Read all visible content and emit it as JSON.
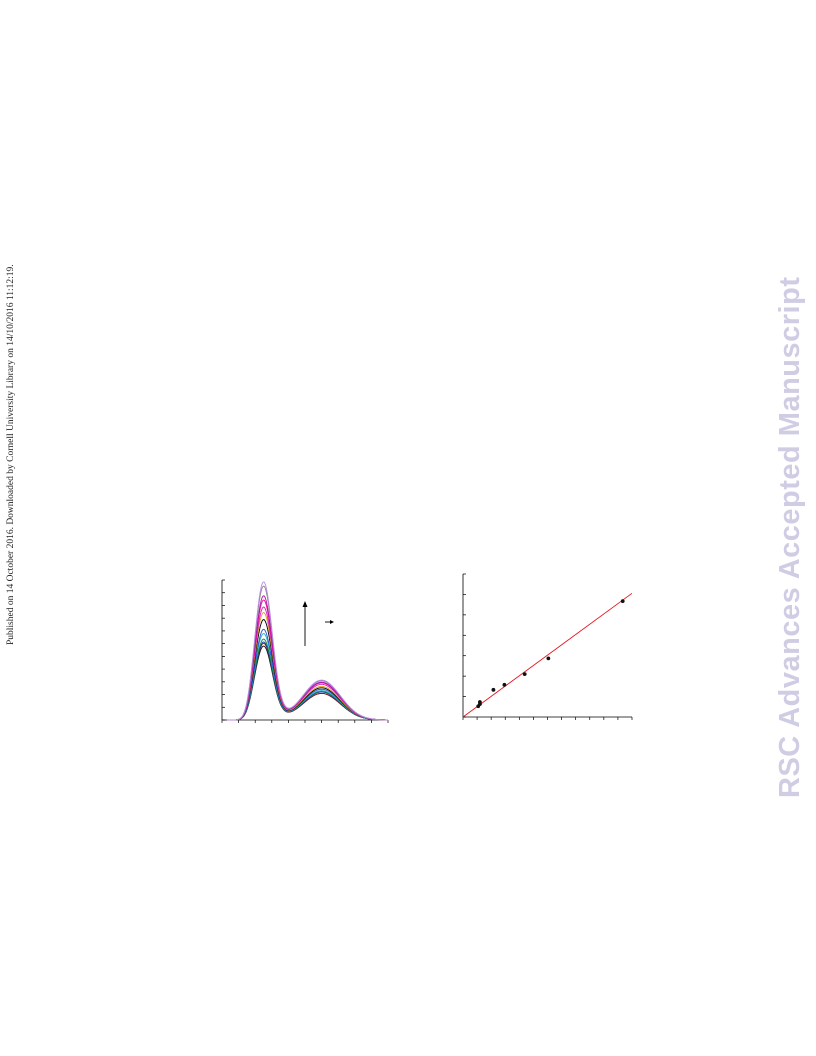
{
  "sidebar_text": "Published on 14 October 2016. Downloaded by Cornell University Library on 14/10/2016 11:12:19.",
  "watermark_text": "RSC Advances Accepted Manuscript",
  "colors": {
    "fit_line": "#e8141e",
    "points": "#111111",
    "axes": "#000000",
    "watermark": "#cfcde4"
  },
  "chart_data": [
    {
      "type": "line",
      "title": "",
      "xlabel": "",
      "ylabel": "",
      "xlim": [
        0,
        1
      ],
      "ylim": [
        0,
        1
      ],
      "grid": false,
      "legend": "none",
      "annotation": {
        "arrow_up": "increasing intensity",
        "arrow_right": true
      },
      "series": [
        {
          "color": "#111111",
          "peak": 0.53,
          "shoulder": 0.19
        },
        {
          "color": "#7a1e1e",
          "peak": 0.55,
          "shoulder": 0.19
        },
        {
          "color": "#1f3aa8",
          "peak": 0.56,
          "shoulder": 0.2
        },
        {
          "color": "#118833",
          "peak": 0.58,
          "shoulder": 0.205
        },
        {
          "color": "#18b3c9",
          "peak": 0.62,
          "shoulder": 0.21
        },
        {
          "color": "#2b4bd0",
          "peak": 0.65,
          "shoulder": 0.22
        },
        {
          "color": "#000000",
          "peak": 0.72,
          "shoulder": 0.23
        },
        {
          "color": "#e3a21a",
          "peak": 0.77,
          "shoulder": 0.24
        },
        {
          "color": "#d020c0",
          "peak": 0.81,
          "shoulder": 0.255
        },
        {
          "color": "#ff0090",
          "peak": 0.86,
          "shoulder": 0.265
        },
        {
          "color": "#a21caf",
          "peak": 0.89,
          "shoulder": 0.27
        },
        {
          "color": "#888888",
          "peak": 0.96,
          "shoulder": 0.28
        },
        {
          "color": "#b98ae6",
          "peak": 0.99,
          "shoulder": 0.285
        }
      ]
    },
    {
      "type": "scatter",
      "title": "",
      "xlabel": "",
      "ylabel": "",
      "xlim": [
        0,
        1
      ],
      "ylim": [
        0,
        1
      ],
      "grid": false,
      "legend": "none",
      "points": [
        {
          "x": 0.09,
          "y": 0.075
        },
        {
          "x": 0.1,
          "y": 0.09
        },
        {
          "x": 0.1,
          "y": 0.105
        },
        {
          "x": 0.18,
          "y": 0.19
        },
        {
          "x": 0.245,
          "y": 0.225
        },
        {
          "x": 0.365,
          "y": 0.3
        },
        {
          "x": 0.505,
          "y": 0.41
        },
        {
          "x": 0.945,
          "y": 0.81
        }
      ],
      "fit": {
        "x0": 0.0,
        "y0": 0.0,
        "x1": 1.0,
        "y1": 0.865
      }
    }
  ]
}
